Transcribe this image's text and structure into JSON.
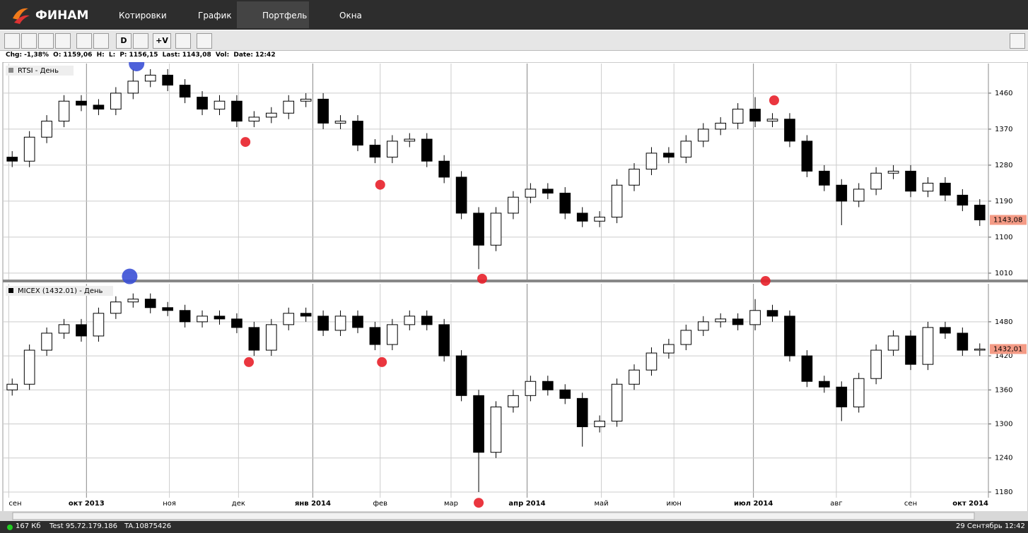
{
  "app": {
    "logo": "ФИНАМ",
    "menu": [
      "Котировки",
      "График",
      "Портфель",
      "Окна"
    ],
    "toolbar": [
      "D",
      "+V"
    ]
  },
  "info_bar": {
    "chg_label": "Chg:",
    "chg": "-1,38%",
    "open_label": "O:",
    "open": "1159,06",
    "high_label": "H:",
    "low_label": "L:",
    "prev_label": "P:",
    "prev": "1156,15",
    "last_label": "Last:",
    "last": "1143,08",
    "vol_label": "Vol:",
    "date_label": "Date:",
    "date": "12:42"
  },
  "chart_data": [
    {
      "type": "candlestick",
      "title": "RTSI - День",
      "xlim": [
        -0.5,
        56.5
      ],
      "ylim": [
        994,
        1534
      ],
      "yticks": [
        1010,
        1100,
        1190,
        1280,
        1370,
        1460
      ],
      "grid": true,
      "last_price": {
        "value": 1143.08,
        "label": "1143,08"
      },
      "open": [
        1300,
        1290,
        1350,
        1390,
        1440,
        1430,
        1420,
        1460,
        1490,
        1505,
        1480,
        1450,
        1420,
        1440,
        1390,
        1400,
        1410,
        1440,
        1445,
        1385,
        1390,
        1330,
        1300,
        1340,
        1345,
        1290,
        1250,
        1160,
        1080,
        1160,
        1200,
        1220,
        1210,
        1160,
        1140,
        1150,
        1230,
        1270,
        1310,
        1300,
        1340,
        1370,
        1385,
        1420,
        1390,
        1395,
        1340,
        1265,
        1230,
        1190,
        1220,
        1260,
        1265,
        1215,
        1235,
        1205,
        1180
      ],
      "high": [
        1315,
        1365,
        1405,
        1455,
        1455,
        1445,
        1475,
        1520,
        1520,
        1520,
        1495,
        1465,
        1455,
        1455,
        1415,
        1425,
        1455,
        1460,
        1460,
        1405,
        1405,
        1345,
        1355,
        1360,
        1360,
        1305,
        1265,
        1175,
        1175,
        1215,
        1235,
        1235,
        1225,
        1175,
        1165,
        1245,
        1285,
        1325,
        1325,
        1355,
        1385,
        1400,
        1435,
        1450,
        1410,
        1410,
        1355,
        1280,
        1245,
        1235,
        1275,
        1280,
        1280,
        1250,
        1250,
        1220,
        1195
      ],
      "low": [
        1275,
        1275,
        1335,
        1375,
        1415,
        1405,
        1405,
        1445,
        1475,
        1465,
        1435,
        1405,
        1405,
        1375,
        1375,
        1385,
        1395,
        1425,
        1370,
        1370,
        1315,
        1285,
        1285,
        1325,
        1275,
        1235,
        1145,
        1020,
        1065,
        1145,
        1185,
        1195,
        1145,
        1125,
        1125,
        1135,
        1215,
        1255,
        1285,
        1285,
        1325,
        1355,
        1370,
        1375,
        1375,
        1325,
        1250,
        1215,
        1130,
        1175,
        1205,
        1245,
        1200,
        1200,
        1190,
        1165,
        1128
      ],
      "close": [
        1290,
        1350,
        1390,
        1440,
        1430,
        1420,
        1460,
        1490,
        1505,
        1480,
        1450,
        1420,
        1440,
        1390,
        1400,
        1410,
        1440,
        1445,
        1385,
        1390,
        1330,
        1300,
        1340,
        1345,
        1290,
        1250,
        1160,
        1080,
        1160,
        1200,
        1220,
        1210,
        1160,
        1140,
        1150,
        1230,
        1270,
        1310,
        1300,
        1340,
        1370,
        1385,
        1420,
        1390,
        1395,
        1340,
        1265,
        1230,
        1190,
        1220,
        1260,
        1265,
        1215,
        1235,
        1205,
        1180,
        1143.08
      ],
      "markers": [
        {
          "x": 7.2,
          "y": 1534,
          "color": "#3b50d6"
        },
        {
          "x": 13.5,
          "y": 1338,
          "color": "#e8202a"
        },
        {
          "x": 21.3,
          "y": 1231,
          "color": "#e8202a"
        },
        {
          "x": 27.2,
          "y": 996,
          "color": "#e8202a"
        },
        {
          "x": 44.1,
          "y": 1442,
          "color": "#e8202a"
        }
      ]
    },
    {
      "type": "candlestick",
      "title": "MICEX (1432.01) - День",
      "xlim": [
        -0.5,
        56.5
      ],
      "ylim": [
        1170,
        1547
      ],
      "yticks": [
        1180,
        1240,
        1300,
        1360,
        1420,
        1480
      ],
      "grid": true,
      "last_price": {
        "value": 1432.01,
        "label": "1432,01"
      },
      "xticks": [
        {
          "value": -0.2,
          "label": "сен"
        },
        {
          "value": 4.3,
          "label": "окт 2013"
        },
        {
          "value": 9.1,
          "label": "ноя"
        },
        {
          "value": 13.1,
          "label": "дек"
        },
        {
          "value": 17.4,
          "label": "янв 2014"
        },
        {
          "value": 21.3,
          "label": "фев"
        },
        {
          "value": 25.4,
          "label": "мар"
        },
        {
          "value": 29.8,
          "label": "апр 2014"
        },
        {
          "value": 34.1,
          "label": "май"
        },
        {
          "value": 38.3,
          "label": "июн"
        },
        {
          "value": 42.9,
          "label": "июл 2014"
        },
        {
          "value": 47.7,
          "label": "авг"
        },
        {
          "value": 52.0,
          "label": "сен"
        },
        {
          "value": 56.5,
          "label": "окт 2014"
        }
      ],
      "open": [
        1360,
        1370,
        1430,
        1460,
        1475,
        1455,
        1495,
        1515,
        1520,
        1505,
        1500,
        1480,
        1490,
        1485,
        1470,
        1430,
        1475,
        1495,
        1490,
        1465,
        1490,
        1470,
        1440,
        1475,
        1490,
        1475,
        1420,
        1350,
        1250,
        1330,
        1350,
        1375,
        1360,
        1345,
        1295,
        1305,
        1370,
        1395,
        1425,
        1440,
        1465,
        1480,
        1485,
        1475,
        1500,
        1490,
        1420,
        1375,
        1365,
        1330,
        1380,
        1430,
        1455,
        1405,
        1470,
        1460,
        1430
      ],
      "high": [
        1380,
        1440,
        1470,
        1485,
        1485,
        1505,
        1525,
        1530,
        1530,
        1515,
        1510,
        1500,
        1500,
        1495,
        1480,
        1485,
        1505,
        1505,
        1500,
        1500,
        1500,
        1480,
        1485,
        1500,
        1500,
        1485,
        1430,
        1360,
        1340,
        1360,
        1385,
        1385,
        1370,
        1355,
        1315,
        1380,
        1405,
        1435,
        1450,
        1475,
        1490,
        1495,
        1495,
        1520,
        1510,
        1500,
        1430,
        1385,
        1375,
        1390,
        1440,
        1465,
        1465,
        1480,
        1480,
        1470,
        1442
      ],
      "low": [
        1350,
        1360,
        1420,
        1450,
        1445,
        1445,
        1485,
        1505,
        1495,
        1490,
        1470,
        1470,
        1475,
        1460,
        1420,
        1420,
        1465,
        1480,
        1455,
        1455,
        1460,
        1430,
        1430,
        1465,
        1465,
        1410,
        1340,
        1180,
        1240,
        1320,
        1340,
        1350,
        1335,
        1260,
        1285,
        1295,
        1360,
        1385,
        1415,
        1430,
        1455,
        1470,
        1465,
        1465,
        1480,
        1410,
        1365,
        1355,
        1305,
        1320,
        1370,
        1420,
        1395,
        1395,
        1450,
        1420,
        1420
      ],
      "close": [
        1370,
        1430,
        1460,
        1475,
        1455,
        1495,
        1515,
        1520,
        1505,
        1500,
        1480,
        1490,
        1485,
        1470,
        1430,
        1475,
        1495,
        1490,
        1465,
        1490,
        1470,
        1440,
        1475,
        1490,
        1475,
        1420,
        1350,
        1250,
        1330,
        1350,
        1375,
        1360,
        1345,
        1295,
        1305,
        1370,
        1395,
        1425,
        1440,
        1465,
        1480,
        1485,
        1475,
        1500,
        1490,
        1420,
        1375,
        1365,
        1330,
        1380,
        1430,
        1455,
        1405,
        1470,
        1460,
        1430,
        1432.01
      ],
      "markers": [
        {
          "x": 6.8,
          "y": 1560,
          "color": "#3b50d6"
        },
        {
          "x": 13.7,
          "y": 1409,
          "color": "#e8202a"
        },
        {
          "x": 21.4,
          "y": 1409,
          "color": "#e8202a"
        },
        {
          "x": 27.0,
          "y": 1161,
          "color": "#e8202a"
        },
        {
          "x": 43.6,
          "y": 1552,
          "color": "#e8202a"
        }
      ]
    }
  ],
  "status_bar": {
    "size": "167 Кб",
    "server": "Test 95.72.179.186",
    "account": "TA.10875426",
    "datetime": "29 Сентябрь 12:42"
  }
}
